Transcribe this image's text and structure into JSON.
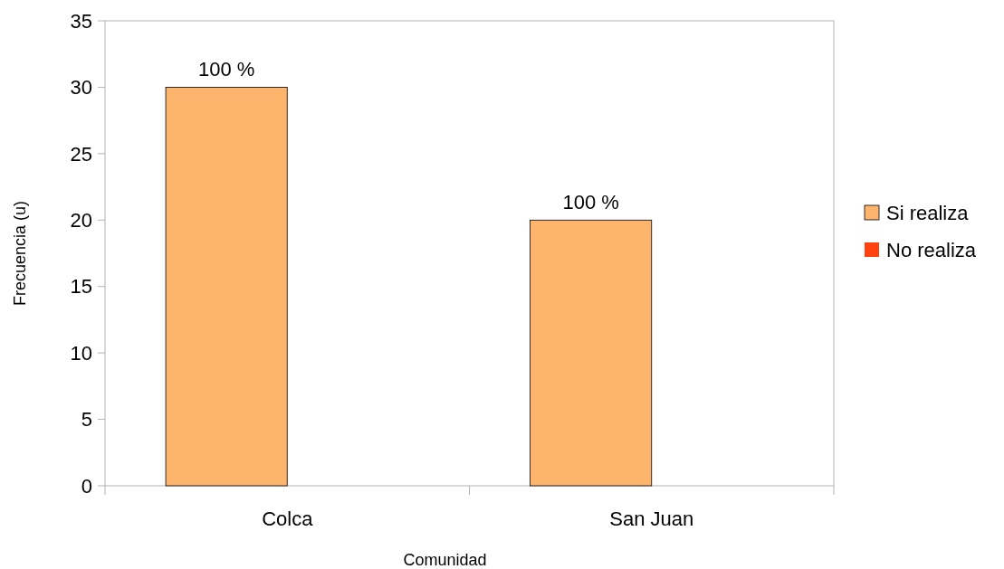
{
  "chart_data": {
    "type": "bar",
    "xlabel": "Comunidad",
    "ylabel": "Frecuencia (u)",
    "categories": [
      "Colca",
      "San Juan"
    ],
    "series": [
      {
        "name": "Si realiza",
        "color": "#fdb46c",
        "values": [
          30,
          20
        ]
      },
      {
        "name": "No realiza",
        "color": "#ff420e",
        "values": [
          0,
          0
        ]
      }
    ],
    "annotations": [
      {
        "text": "100 %",
        "x": "Colca",
        "y": 30
      },
      {
        "text": "100 %",
        "x": "San Juan",
        "y": 20
      }
    ],
    "ylim": [
      0,
      35
    ],
    "yticks": [
      0,
      5,
      10,
      15,
      20,
      25,
      30,
      35
    ],
    "grid": false,
    "legend": "right"
  }
}
